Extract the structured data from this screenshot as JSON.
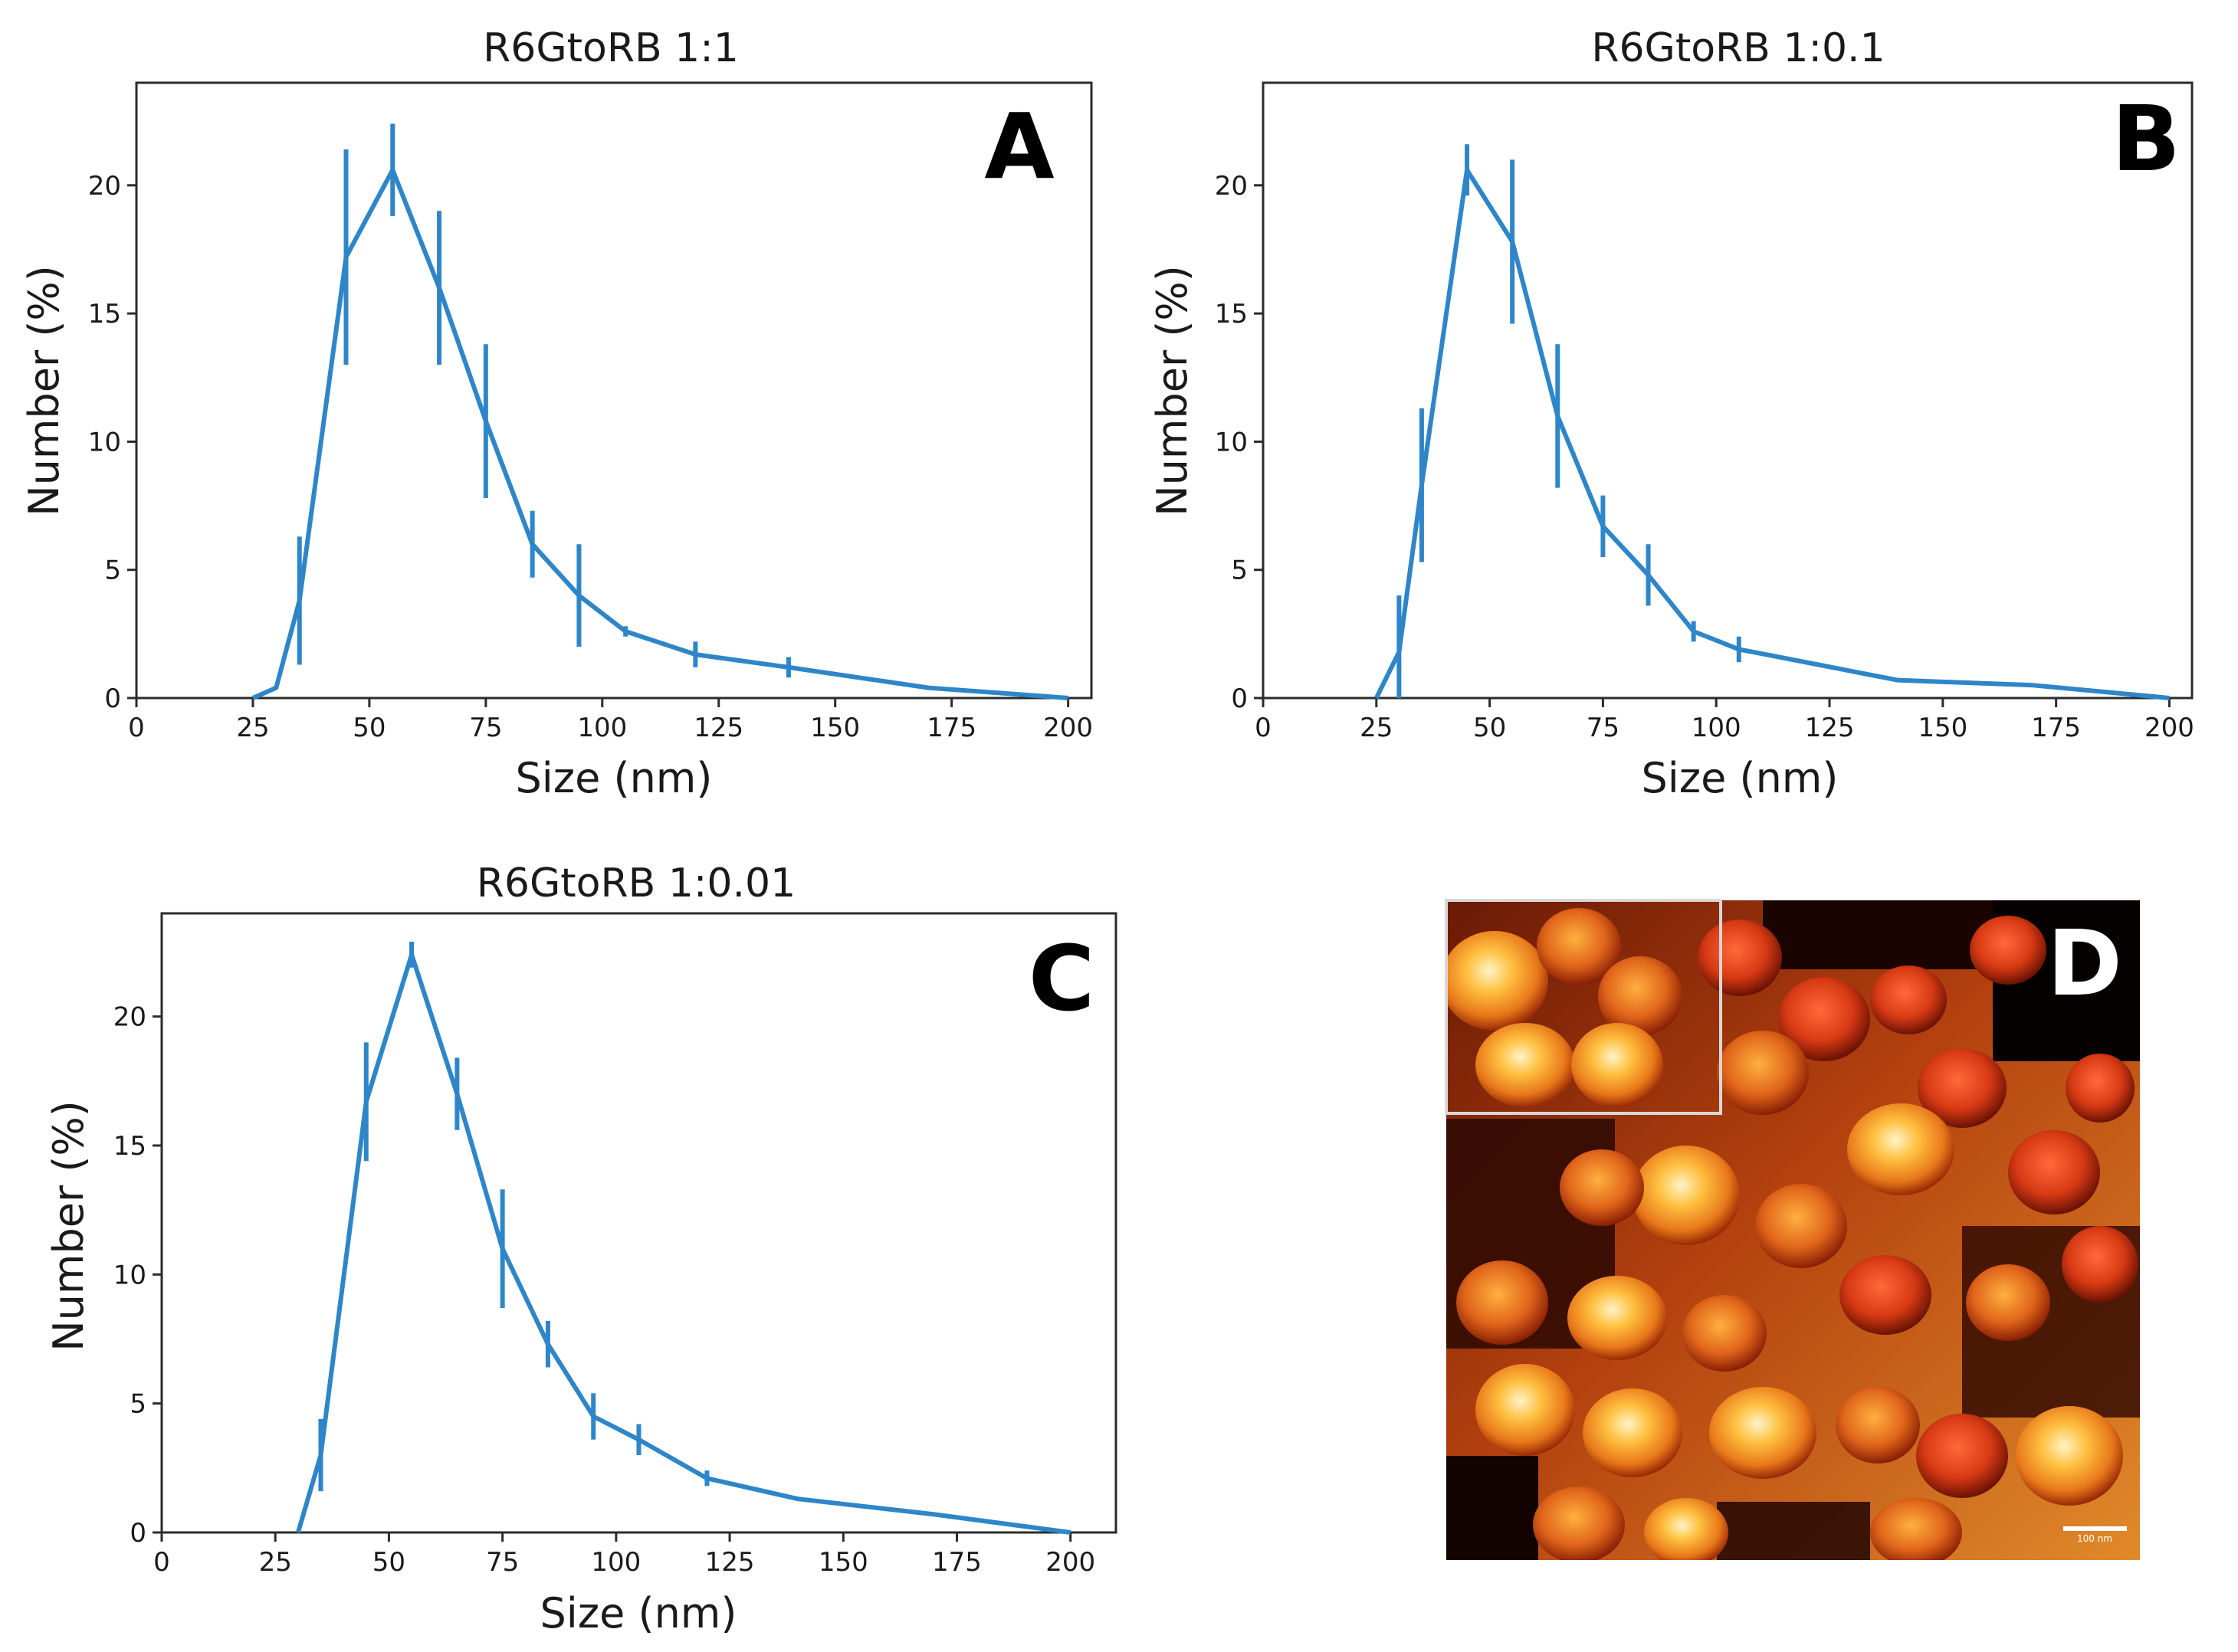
{
  "chart_data": [
    {
      "type": "line",
      "panel_letter": "A",
      "title": "R6GtoRB 1:1",
      "xlabel": "Size (nm)",
      "ylabel": "Number (%)",
      "xlim": [
        0,
        205
      ],
      "ylim": [
        0,
        24
      ],
      "xticks": [
        0,
        25,
        50,
        75,
        100,
        125,
        150,
        175,
        200
      ],
      "yticks": [
        0,
        5,
        10,
        15,
        20
      ],
      "color": "#2e86c8",
      "points": [
        {
          "x": 25,
          "y": 0
        },
        {
          "x": 30,
          "y": 0.4
        },
        {
          "x": 35,
          "y": 3.8,
          "err": 2.5
        },
        {
          "x": 45,
          "y": 17.2,
          "err": 4.2
        },
        {
          "x": 55,
          "y": 20.6,
          "err": 1.8
        },
        {
          "x": 65,
          "y": 16.0,
          "err": 3.0
        },
        {
          "x": 75,
          "y": 10.8,
          "err": 3.0
        },
        {
          "x": 85,
          "y": 6.0,
          "err": 1.3
        },
        {
          "x": 95,
          "y": 4.0,
          "err": 2.0
        },
        {
          "x": 105,
          "y": 2.6,
          "err": 0.2
        },
        {
          "x": 120,
          "y": 1.7,
          "err": 0.5
        },
        {
          "x": 140,
          "y": 1.2,
          "err": 0.4
        },
        {
          "x": 170,
          "y": 0.4
        },
        {
          "x": 200,
          "y": 0
        }
      ]
    },
    {
      "type": "line",
      "panel_letter": "B",
      "title": "R6GtoRB 1:0.1",
      "xlabel": "Size (nm)",
      "ylabel": "Number (%)",
      "xlim": [
        0,
        205
      ],
      "ylim": [
        0,
        24
      ],
      "xticks": [
        0,
        25,
        50,
        75,
        100,
        125,
        150,
        175,
        200
      ],
      "yticks": [
        0,
        5,
        10,
        15,
        20
      ],
      "color": "#2e86c8",
      "points": [
        {
          "x": 25,
          "y": 0
        },
        {
          "x": 30,
          "y": 1.8,
          "err": 2.2
        },
        {
          "x": 35,
          "y": 8.3,
          "err": 3.0
        },
        {
          "x": 45,
          "y": 20.6,
          "err": 1.0
        },
        {
          "x": 55,
          "y": 17.8,
          "err": 3.2
        },
        {
          "x": 65,
          "y": 11.0,
          "err": 2.8
        },
        {
          "x": 75,
          "y": 6.7,
          "err": 1.2
        },
        {
          "x": 85,
          "y": 4.8,
          "err": 1.2
        },
        {
          "x": 95,
          "y": 2.6,
          "err": 0.4
        },
        {
          "x": 105,
          "y": 1.9,
          "err": 0.5
        },
        {
          "x": 140,
          "y": 0.7
        },
        {
          "x": 170,
          "y": 0.5
        },
        {
          "x": 200,
          "y": 0
        }
      ]
    },
    {
      "type": "line",
      "panel_letter": "C",
      "title": "R6GtoRB 1:0.01",
      "xlabel": "Size (nm)",
      "ylabel": "Number (%)",
      "xlim": [
        0,
        210
      ],
      "ylim": [
        0,
        24
      ],
      "xticks": [
        0,
        25,
        50,
        75,
        100,
        125,
        150,
        175,
        200
      ],
      "yticks": [
        0,
        5,
        10,
        15,
        20
      ],
      "color": "#2e86c8",
      "points": [
        {
          "x": 30,
          "y": 0
        },
        {
          "x": 35,
          "y": 3.0,
          "err": 1.4
        },
        {
          "x": 45,
          "y": 16.7,
          "err": 2.3
        },
        {
          "x": 55,
          "y": 22.4,
          "err": 0.5
        },
        {
          "x": 65,
          "y": 17.0,
          "err": 1.4
        },
        {
          "x": 75,
          "y": 11.0,
          "err": 2.3
        },
        {
          "x": 85,
          "y": 7.3,
          "err": 0.9
        },
        {
          "x": 95,
          "y": 4.5,
          "err": 0.9
        },
        {
          "x": 105,
          "y": 3.6,
          "err": 0.6
        },
        {
          "x": 120,
          "y": 2.1,
          "err": 0.3
        },
        {
          "x": 140,
          "y": 1.3
        },
        {
          "x": 170,
          "y": 0.7
        },
        {
          "x": 200,
          "y": 0
        }
      ]
    }
  ],
  "image_panel": {
    "panel_letter": "D",
    "scale_bar_text": "100 nm"
  }
}
